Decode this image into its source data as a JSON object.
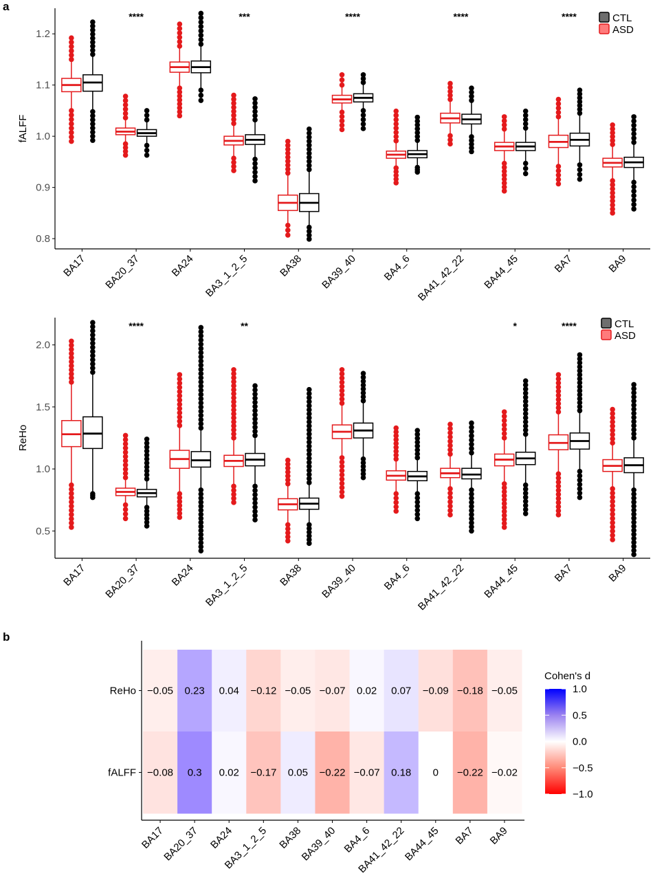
{
  "panel_labels": {
    "a": "a",
    "b": "b"
  },
  "colors": {
    "ctl": "#000000",
    "asd": "#e41a1c",
    "ctl_fill": "#6e6e6e",
    "asd_fill": "#ff7b7b",
    "heat_high": "#0000ff",
    "heat_mid": "#ffffff",
    "heat_low": "#ff0000"
  },
  "chart_data": [
    {
      "type": "box",
      "ylabel": "fALFF",
      "ylim": [
        0.78,
        1.25
      ],
      "yticks": [
        "0.8",
        "0.9",
        "1.0",
        "1.1",
        "1.2"
      ],
      "ytick_values": [
        0.8,
        0.9,
        1.0,
        1.1,
        1.2
      ],
      "categories": [
        "BA17",
        "BA20_37",
        "BA24",
        "BA3_1_2_5",
        "BA38",
        "BA39_40",
        "BA4_6",
        "BA41_42_22",
        "BA44_45",
        "BA7",
        "BA9"
      ],
      "significance": [
        "",
        "****",
        "",
        "***",
        "",
        "****",
        "",
        "****",
        "",
        "****",
        ""
      ],
      "legend": [
        "CTL",
        "ASD"
      ],
      "series": [
        {
          "name": "ASD",
          "median": [
            1.1,
            1.009,
            1.135,
            0.991,
            0.87,
            1.072,
            0.964,
            1.035,
            0.98,
            0.989,
            0.948
          ],
          "q1": [
            1.087,
            1.003,
            1.125,
            0.983,
            0.855,
            1.065,
            0.957,
            1.026,
            0.972,
            0.978,
            0.94
          ],
          "q3": [
            1.113,
            1.016,
            1.145,
            1.0,
            0.885,
            1.08,
            0.971,
            1.045,
            0.988,
            1.002,
            0.957
          ],
          "whisker_low": [
            1.05,
            0.985,
            1.094,
            0.957,
            0.826,
            1.047,
            0.938,
            1.001,
            0.947,
            0.941,
            0.913
          ],
          "whisker_high": [
            1.15,
            1.036,
            1.176,
            1.025,
            0.928,
            1.1,
            0.991,
            1.072,
            1.014,
            1.038,
            0.984
          ],
          "outlier_low": [
            0.99,
            0.963,
            1.04,
            0.933,
            0.807,
            1.013,
            0.909,
            0.985,
            0.893,
            0.907,
            0.85
          ],
          "outlier_high": [
            1.192,
            1.078,
            1.219,
            1.08,
            0.99,
            1.12,
            1.049,
            1.103,
            1.038,
            1.072,
            1.022
          ]
        },
        {
          "name": "CTL",
          "median": [
            1.105,
            1.006,
            1.135,
            0.993,
            0.87,
            1.075,
            0.965,
            1.033,
            0.98,
            0.993,
            0.949
          ],
          "q1": [
            1.088,
            1.0,
            1.124,
            0.984,
            0.853,
            1.067,
            0.958,
            1.024,
            0.972,
            0.981,
            0.939
          ],
          "q3": [
            1.12,
            1.013,
            1.147,
            1.003,
            0.888,
            1.083,
            0.972,
            1.043,
            0.988,
            1.006,
            0.959
          ],
          "whisker_low": [
            1.048,
            0.982,
            1.09,
            0.955,
            0.822,
            1.05,
            0.939,
            0.999,
            0.947,
            0.944,
            0.91
          ],
          "whisker_high": [
            1.16,
            1.032,
            1.18,
            1.032,
            0.935,
            1.105,
            0.992,
            1.07,
            1.016,
            1.045,
            0.988
          ],
          "outlier_low": [
            0.992,
            0.963,
            1.07,
            0.913,
            0.799,
            1.015,
            0.93,
            0.97,
            0.927,
            0.916,
            0.858
          ],
          "outlier_high": [
            1.223,
            1.05,
            1.24,
            1.073,
            1.014,
            1.12,
            1.037,
            1.094,
            1.049,
            1.09,
            1.038
          ]
        }
      ]
    },
    {
      "type": "box",
      "ylabel": "ReHo",
      "ylim": [
        0.28,
        2.22
      ],
      "yticks": [
        "0.5",
        "1.0",
        "1.5",
        "2.0"
      ],
      "ytick_values": [
        0.5,
        1.0,
        1.5,
        2.0
      ],
      "categories": [
        "BA17",
        "BA20_37",
        "BA24",
        "BA3_1_2_5",
        "BA38",
        "BA39_40",
        "BA4_6",
        "BA41_42_22",
        "BA44_45",
        "BA7",
        "BA9"
      ],
      "significance": [
        "",
        "****",
        "",
        "**",
        "",
        "",
        "",
        "",
        "*",
        "****",
        ""
      ],
      "legend": [
        "CTL",
        "ASD"
      ],
      "series": [
        {
          "name": "ASD",
          "median": [
            1.28,
            0.815,
            1.08,
            1.065,
            0.715,
            1.3,
            0.945,
            0.965,
            1.075,
            1.21,
            1.025
          ],
          "q1": [
            1.18,
            0.785,
            1.005,
            1.02,
            0.67,
            1.245,
            0.91,
            0.93,
            1.025,
            1.155,
            0.98
          ],
          "q3": [
            1.39,
            0.845,
            1.15,
            1.11,
            0.76,
            1.355,
            0.985,
            1.005,
            1.12,
            1.275,
            1.075
          ],
          "whisker_low": [
            0.87,
            0.71,
            0.8,
            0.86,
            0.55,
            1.09,
            0.8,
            0.84,
            0.88,
            0.96,
            0.84
          ],
          "whisker_high": [
            1.7,
            0.93,
            1.35,
            1.25,
            0.88,
            1.53,
            1.08,
            1.12,
            1.25,
            1.46,
            1.21
          ],
          "outlier_low": [
            0.53,
            0.6,
            0.61,
            0.73,
            0.42,
            0.78,
            0.66,
            0.63,
            0.53,
            0.63,
            0.43
          ],
          "outlier_high": [
            2.03,
            1.27,
            1.76,
            1.8,
            1.07,
            1.8,
            1.33,
            1.36,
            1.46,
            1.76,
            1.48
          ]
        },
        {
          "name": "CTL",
          "median": [
            1.285,
            0.805,
            1.07,
            1.075,
            0.72,
            1.31,
            0.94,
            0.955,
            1.085,
            1.225,
            1.03
          ],
          "q1": [
            1.165,
            0.775,
            1.015,
            1.025,
            0.675,
            1.25,
            0.905,
            0.92,
            1.035,
            1.16,
            0.97
          ],
          "q3": [
            1.42,
            0.835,
            1.14,
            1.125,
            0.765,
            1.37,
            0.98,
            1.005,
            1.135,
            1.29,
            1.09
          ],
          "whisker_low": [
            0.8,
            0.69,
            0.83,
            0.86,
            0.55,
            1.08,
            0.8,
            0.83,
            0.87,
            0.98,
            0.83
          ],
          "whisker_high": [
            1.78,
            0.92,
            1.33,
            1.27,
            0.89,
            1.55,
            1.09,
            1.13,
            1.28,
            1.47,
            1.25
          ],
          "outlier_low": [
            0.77,
            0.54,
            0.34,
            0.59,
            0.4,
            0.93,
            0.6,
            0.5,
            0.64,
            0.77,
            0.31
          ],
          "outlier_high": [
            2.18,
            1.24,
            2.14,
            1.67,
            1.64,
            1.77,
            1.31,
            1.37,
            1.71,
            1.92,
            1.68
          ]
        }
      ]
    },
    {
      "type": "heatmap",
      "x_categories": [
        "BA17",
        "BA20_37",
        "BA24",
        "BA3_1_2_5",
        "BA38",
        "BA39_40",
        "BA4_6",
        "BA41_42_22",
        "BA44_45",
        "BA7",
        "BA9"
      ],
      "y_categories": [
        "ReHo",
        "fALFF"
      ],
      "values": [
        [
          -0.05,
          0.23,
          0.04,
          -0.12,
          -0.05,
          -0.07,
          0.02,
          0.07,
          -0.09,
          -0.18,
          -0.05
        ],
        [
          -0.08,
          0.3,
          0.02,
          -0.17,
          0.05,
          -0.22,
          -0.07,
          0.18,
          0,
          -0.22,
          -0.02
        ]
      ],
      "labels": [
        [
          "−0.05",
          "0.23",
          "0.04",
          "−0.12",
          "−0.05",
          "−0.07",
          "0.02",
          "0.07",
          "−0.09",
          "−0.18",
          "−0.05"
        ],
        [
          "−0.08",
          "0.3",
          "0.02",
          "−0.17",
          "0.05",
          "−0.22",
          "−0.07",
          "0.18",
          "0",
          "−0.22",
          "−0.02"
        ]
      ],
      "colorbar": {
        "title": "Cohen's d",
        "range": [
          -1.0,
          1.0
        ],
        "ticks": [
          "1.0",
          "0.5",
          "0.0",
          "−0.5",
          "−1.0"
        ],
        "tick_values": [
          1.0,
          0.5,
          0.0,
          -0.5,
          -1.0
        ]
      }
    }
  ]
}
